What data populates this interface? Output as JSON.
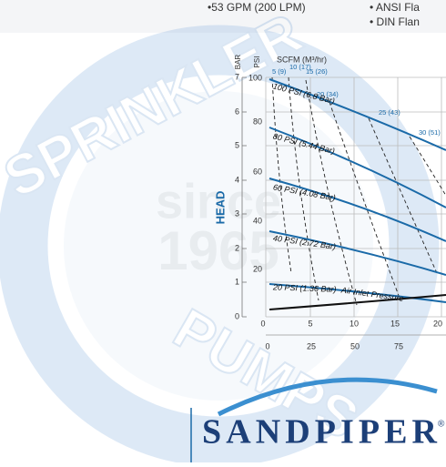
{
  "header": {
    "bullets": [
      "•53 GPM (200 LPM)",
      "• ANSI Fla",
      "• DIN Flan"
    ]
  },
  "watermark": {
    "top": "SPRINKLER",
    "bottom": "PUMPS",
    "since": "since",
    "year": "1965"
  },
  "chart": {
    "bar_label": "BAR",
    "psi_label": "PSI",
    "air_label": "SCFM (M³/hr)",
    "head_label": "HEAD",
    "bar_ticks": [
      "0",
      "1",
      "2",
      "3",
      "4",
      "5",
      "6",
      "7"
    ],
    "psi_ticks": [
      "20",
      "40",
      "60",
      "80",
      "100"
    ],
    "x_ticks_gpm": [
      "0",
      "5",
      "10",
      "15",
      "20"
    ],
    "x_ticks_lpm": [
      "0",
      "25",
      "50",
      "75"
    ],
    "air_curves": [
      "5 (9)",
      "10 (17)",
      "15 (26)",
      "20 (34)",
      "25 (43)",
      "30 (51)"
    ],
    "pressure_curves": [
      "100 PSI (6.8 Bar)",
      "80 PSI (5.44 Bar)",
      "60 PSI (4.08 Bar)",
      "40 PSI (2.72 Bar)",
      "20 PSI (1.36 Bar)"
    ],
    "inlet_label": "Air Inlet Pressure"
  },
  "logo": {
    "name": "SANDPIPER",
    "mark": "®"
  }
}
